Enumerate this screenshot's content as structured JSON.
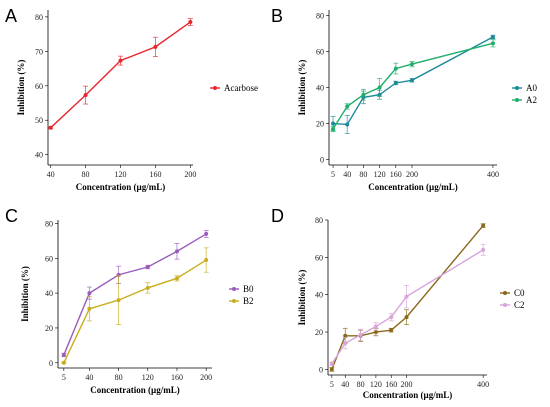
{
  "chart_data": [
    {
      "type": "line",
      "panel": "A",
      "x": [
        40,
        80,
        120,
        160,
        200
      ],
      "xticks": [
        "40",
        "80",
        "120",
        "160",
        "200"
      ],
      "xlim": [
        37,
        203
      ],
      "yticks": [
        "40",
        "50",
        "60",
        "70",
        "80"
      ],
      "ylim": [
        37,
        82
      ],
      "xlabel": "Concentration (µg/mL)",
      "ylabel": "Inhibition (%)",
      "legend_position": "right",
      "series": [
        {
          "name": "Acarbose",
          "color": "#e8262b",
          "values": [
            47.8,
            57.3,
            67.3,
            71.3,
            78.5
          ],
          "errors": [
            0.3,
            2.6,
            1.3,
            2.8,
            1.0
          ]
        }
      ]
    },
    {
      "type": "line",
      "panel": "B",
      "x": [
        5,
        40,
        80,
        120,
        160,
        200,
        400
      ],
      "xticks": [
        "5",
        "40",
        "80",
        "120",
        "160",
        "200",
        "400"
      ],
      "xlim": [
        -5,
        410
      ],
      "yticks": [
        "0",
        "20",
        "40",
        "60",
        "80"
      ],
      "ylim": [
        -3,
        83
      ],
      "xlabel": "Concentration (µg/mL)",
      "ylabel": "Inhibition (%)",
      "legend_position": "right",
      "series": [
        {
          "name": "A0",
          "color": "#1b8a9a",
          "values": [
            20,
            19.5,
            34.5,
            36,
            42.5,
            44,
            68
          ],
          "errors": [
            4,
            5,
            3.5,
            2.5,
            1,
            1,
            1
          ]
        },
        {
          "name": "A2",
          "color": "#1fae6b",
          "values": [
            17,
            29.5,
            36,
            40,
            50.5,
            53,
            64.5
          ],
          "errors": [
            1.5,
            1.5,
            3,
            5,
            3,
            1.5,
            2
          ]
        }
      ]
    },
    {
      "type": "line",
      "panel": "C",
      "x": [
        5,
        40,
        80,
        120,
        160,
        200
      ],
      "xticks": [
        "5",
        "40",
        "80",
        "120",
        "160",
        "200"
      ],
      "xlim": [
        -3,
        208
      ],
      "yticks": [
        "0",
        "20",
        "40",
        "60",
        "80"
      ],
      "ylim": [
        -3,
        82
      ],
      "xlabel": "Concentration (µg/mL)",
      "ylabel": "Inhibition (%)",
      "legend_position": "right",
      "series": [
        {
          "name": "B0",
          "color": "#9a5cbf",
          "values": [
            4.5,
            40,
            50.5,
            55,
            64,
            74
          ],
          "errors": [
            1,
            3.5,
            5,
            1,
            4.5,
            2
          ]
        },
        {
          "name": "B2",
          "color": "#c9ad1c",
          "values": [
            0,
            31,
            36,
            43,
            48.5,
            59
          ],
          "errors": [
            0.5,
            7,
            14,
            3,
            1.5,
            7
          ]
        }
      ]
    },
    {
      "type": "line",
      "panel": "D",
      "x": [
        5,
        40,
        80,
        120,
        160,
        200,
        400
      ],
      "xticks": [
        "5",
        "40",
        "80",
        "120",
        "160",
        "200",
        "400"
      ],
      "xlim": [
        -5,
        410
      ],
      "yticks": [
        "0",
        "20",
        "40",
        "60",
        "80"
      ],
      "ylim": [
        -3,
        80
      ],
      "xlabel": "Concentration (µg/mL)",
      "ylabel": "Inhibition (%)",
      "legend_position": "right",
      "series": [
        {
          "name": "C0",
          "color": "#8a6a1a",
          "values": [
            0,
            18,
            18,
            20,
            21,
            28,
            77
          ],
          "errors": [
            1,
            4,
            3,
            2,
            1,
            4,
            1
          ]
        },
        {
          "name": "C2",
          "color": "#d9a3dc",
          "values": [
            3,
            14,
            18.5,
            23,
            28,
            39,
            64
          ],
          "errors": [
            1,
            3,
            3,
            2,
            2,
            6,
            3
          ]
        }
      ]
    }
  ]
}
